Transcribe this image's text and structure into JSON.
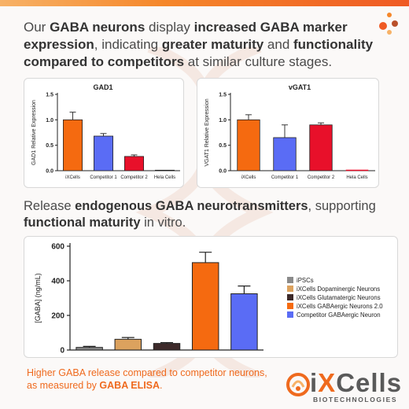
{
  "headline": {
    "p1": "Our ",
    "b1": "GABA neurons",
    "p2": " display ",
    "b2": "increased GABA marker expression",
    "p3": ", indicating ",
    "b3": "greater maturity",
    "p4": " and ",
    "b4": "functionality compared to competitors",
    "p5": " at similar culture stages."
  },
  "subhead": {
    "p1": "Release ",
    "b1": "endogenous GABA neurotransmitters",
    "p2": ", supporting ",
    "b2": "functional maturity",
    "p3": " in vitro."
  },
  "footnote": {
    "p1": "Higher GABA release compared to competitor neurons, as measured by ",
    "b1": "GABA ELISA",
    "p2": "."
  },
  "logo": {
    "name_i": "i",
    "name_x": "X",
    "name_rest": "Cells",
    "sub": "BIOTECHNOLOGIES"
  },
  "colors": {
    "accent": "#ef6a1e",
    "blue": "#5a6cf5",
    "red": "#e8102a",
    "tan": "#dca25e",
    "dark": "#3d2a2a",
    "grey": "#8a8a8a"
  },
  "chart_data": [
    {
      "type": "bar",
      "title": "GAD1",
      "ylabel": "GAD1 Relative Expression",
      "categories": [
        "iXCells",
        "Competitor 1",
        "Competitor 2",
        "Hela Cells"
      ],
      "values": [
        1.0,
        0.68,
        0.28,
        0.01
      ],
      "errors": [
        0.15,
        0.05,
        0.03,
        0.0
      ],
      "colors": [
        "#f56a10",
        "#5a6cf5",
        "#e8102a",
        "#e8102a"
      ],
      "ylim": [
        0,
        1.5
      ],
      "yticks": [
        "0.0",
        "0.5",
        "1.0",
        "1.5"
      ]
    },
    {
      "type": "bar",
      "title": "vGAT1",
      "ylabel": "VGAT1 Relative Expression",
      "categories": [
        "iXCells",
        "Competitor 1",
        "Competitor 2",
        "Hela Cells"
      ],
      "values": [
        1.0,
        0.65,
        0.9,
        0.0
      ],
      "errors": [
        0.1,
        0.25,
        0.04,
        0.0
      ],
      "colors": [
        "#f56a10",
        "#5a6cf5",
        "#e8102a",
        "#e8102a"
      ],
      "ylim": [
        0,
        1.5
      ],
      "yticks": [
        "0.0",
        "0.5",
        "1.0",
        "1.5"
      ]
    },
    {
      "type": "bar",
      "ylabel": "[GABA] (ng/mL)",
      "series": [
        {
          "name": "iPSCs",
          "value": 15,
          "error": 6,
          "color": "#8a8a8a"
        },
        {
          "name": "iXCells Dopaminergic Neurons",
          "value": 62,
          "error": 10,
          "color": "#dca25e"
        },
        {
          "name": "iXCells Glutamatergic Neurons",
          "value": 38,
          "error": 5,
          "color": "#3d2a2a"
        },
        {
          "name": "iXCells GABAergic Neurons 2.0",
          "value": 505,
          "error": 60,
          "color": "#f56a10"
        },
        {
          "name": "Competitor GABAergic Neuron",
          "value": 325,
          "error": 45,
          "color": "#5a6cf5"
        }
      ],
      "ylim": [
        0,
        600
      ],
      "yticks": [
        "0",
        "200",
        "400",
        "600"
      ]
    }
  ]
}
